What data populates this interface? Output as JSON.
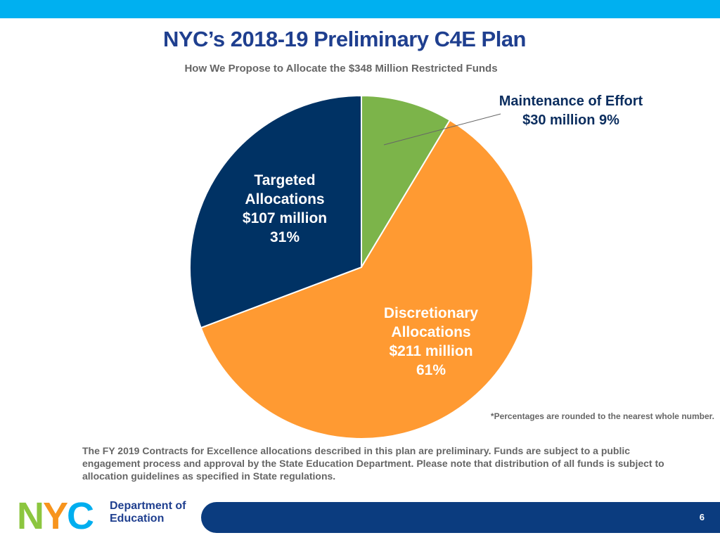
{
  "slide": {
    "title": "NYC’s 2018-19 Preliminary C4E Plan",
    "subtitle": "How We Propose to Allocate the $348 Million Restricted Funds",
    "footnote": "*Percentages are rounded to the nearest whole number.",
    "body_text": "The FY 2019 Contracts for Excellence allocations described in this plan are preliminary. Funds are subject to a public engagement process and approval by the State Education Department. Please note that distribution of all funds is subject to allocation guidelines as specified in State regulations.",
    "page_number": "6"
  },
  "logo": {
    "letters": [
      "N",
      "Y",
      "C"
    ],
    "line1": "Department of",
    "line2": "Education"
  },
  "colors": {
    "top_bar": "#00b0f0",
    "title": "#1f3f8f",
    "bottom_bar": "#0b3c7f",
    "maintenance": "#7cb44a",
    "discretionary": "#ff9a32",
    "targeted": "#003264"
  },
  "chart_data": {
    "type": "pie",
    "title": "",
    "total_label": "$348 Million",
    "start": "12 o'clock",
    "direction": "clockwise",
    "slices": [
      {
        "key": "maintenance",
        "value": 30,
        "percent": 9,
        "color": "#7cb44a",
        "label_lines": [
          "Maintenance of Effort",
          "$30 million  9%"
        ]
      },
      {
        "key": "discretionary",
        "value": 211,
        "percent": 61,
        "color": "#ff9a32",
        "label_lines": [
          "Discretionary",
          "Allocations",
          "$211 million",
          "61%"
        ]
      },
      {
        "key": "targeted",
        "value": 107,
        "percent": 31,
        "color": "#003264",
        "label_lines": [
          "Targeted",
          "Allocations",
          "$107 million",
          "31%"
        ]
      }
    ]
  }
}
